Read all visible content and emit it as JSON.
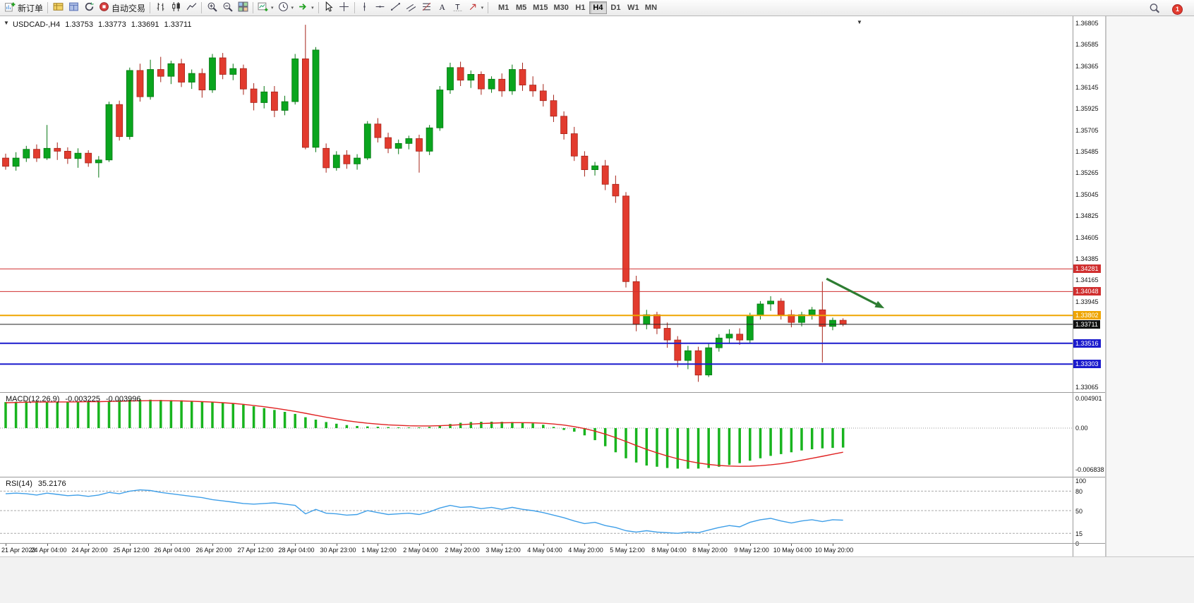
{
  "toolbar": {
    "new_order_label": "新订单",
    "autotrade_label": "自动交易",
    "timeframes": [
      "M1",
      "M5",
      "M15",
      "M30",
      "H1",
      "H4",
      "D1",
      "W1",
      "MN"
    ],
    "active_timeframe": "H4",
    "notification_count": "1"
  },
  "chart_header": {
    "symbol_period": "USDCAD-,H4",
    "open": "1.33753",
    "high": "1.33773",
    "low": "1.33691",
    "close": "1.33711"
  },
  "indicators": {
    "macd": {
      "label": "MACD(12,26,9)",
      "value_main": "-0.003225",
      "value_signal": "-0.003996"
    },
    "rsi": {
      "label": "RSI(14)",
      "value": "35.2176"
    }
  },
  "price_axis": {
    "labels": [
      "1.36805",
      "1.36585",
      "1.36365",
      "1.36145",
      "1.35925",
      "1.35705",
      "1.35485",
      "1.35265",
      "1.35045",
      "1.34825",
      "1.34605",
      "1.34385",
      "1.34165",
      "1.33945",
      "1.33065"
    ],
    "badges": [
      {
        "value": "1.34281",
        "color": "#d02f2f"
      },
      {
        "value": "1.34048",
        "color": "#d02f2f"
      },
      {
        "value": "1.33802",
        "color": "#efa500"
      },
      {
        "value": "1.33711",
        "color": "#111111"
      },
      {
        "value": "1.33516",
        "color": "#1b1bcd"
      },
      {
        "value": "1.33303",
        "color": "#1b1bcd"
      }
    ]
  },
  "chart_data": [
    {
      "type": "candlestick",
      "symbol": "USDCAD",
      "period": "H4",
      "ylim": [
        1.33065,
        1.36805
      ],
      "colors": {
        "up": "#0aa51e",
        "down": "#e23b2e",
        "up_stroke": "#067712",
        "down_stroke": "#a6241a"
      },
      "hlines": [
        {
          "price": 1.34281,
          "color": "#d02f2f",
          "width": 1
        },
        {
          "price": 1.34048,
          "color": "#d02f2f",
          "width": 1
        },
        {
          "price": 1.33802,
          "color": "#efa500",
          "width": 2
        },
        {
          "price": 1.33711,
          "color": "#222222",
          "width": 1
        },
        {
          "price": 1.33516,
          "color": "#1b1bcd",
          "width": 2
        },
        {
          "price": 1.33303,
          "color": "#1b1bcd",
          "width": 2
        }
      ],
      "annotation_arrow": {
        "from": {
          "bar": 79.4,
          "price": 1.3418
        },
        "to": {
          "bar": 85,
          "price": 1.33876
        },
        "color": "#2e7d32"
      },
      "x_tick_labels": [
        {
          "bar": 0,
          "label": "21 Apr 2023"
        },
        {
          "bar": 4,
          "label": "24 Apr 04:00"
        },
        {
          "bar": 8,
          "label": "24 Apr 20:00"
        },
        {
          "bar": 12,
          "label": "25 Apr 12:00"
        },
        {
          "bar": 16,
          "label": "26 Apr 04:00"
        },
        {
          "bar": 20,
          "label": "26 Apr 20:00"
        },
        {
          "bar": 24,
          "label": "27 Apr 12:00"
        },
        {
          "bar": 28,
          "label": "28 Apr 04:00"
        },
        {
          "bar": 32,
          "label": "30 Apr 23:00"
        },
        {
          "bar": 36,
          "label": "1 May 12:00"
        },
        {
          "bar": 40,
          "label": "2 May 04:00"
        },
        {
          "bar": 44,
          "label": "2 May 20:00"
        },
        {
          "bar": 48,
          "label": "3 May 12:00"
        },
        {
          "bar": 52,
          "label": "4 May 04:00"
        },
        {
          "bar": 56,
          "label": "4 May 20:00"
        },
        {
          "bar": 60,
          "label": "5 May 12:00"
        },
        {
          "bar": 64,
          "label": "8 May 04:00"
        },
        {
          "bar": 68,
          "label": "8 May 20:00"
        },
        {
          "bar": 72,
          "label": "9 May 12:00"
        },
        {
          "bar": 76,
          "label": "10 May 04:00"
        },
        {
          "bar": 80,
          "label": "10 May 20:00"
        }
      ],
      "ohlc": [
        [
          1.3542,
          1.35465,
          1.353,
          1.35335
        ],
        [
          1.35335,
          1.3548,
          1.3529,
          1.3542
        ],
        [
          1.3542,
          1.35545,
          1.3538,
          1.3551
        ],
        [
          1.3551,
          1.3556,
          1.3538,
          1.3542
        ],
        [
          1.3542,
          1.3576,
          1.354,
          1.3552
        ],
        [
          1.3552,
          1.3558,
          1.354,
          1.3549
        ],
        [
          1.3549,
          1.3553,
          1.3536,
          1.35415
        ],
        [
          1.35415,
          1.3552,
          1.3532,
          1.3547
        ],
        [
          1.3547,
          1.355,
          1.3533,
          1.3537
        ],
        [
          1.3537,
          1.3544,
          1.3522,
          1.354
        ],
        [
          1.354,
          1.36,
          1.3538,
          1.3597
        ],
        [
          1.3597,
          1.3601,
          1.356,
          1.3564
        ],
        [
          1.3564,
          1.3635,
          1.3561,
          1.3632
        ],
        [
          1.3632,
          1.3639,
          1.36,
          1.3605
        ],
        [
          1.3605,
          1.3643,
          1.3602,
          1.3633
        ],
        [
          1.3633,
          1.3646,
          1.362,
          1.3626
        ],
        [
          1.3626,
          1.3642,
          1.3618,
          1.3639
        ],
        [
          1.3639,
          1.3644,
          1.3615,
          1.362
        ],
        [
          1.362,
          1.3633,
          1.3613,
          1.3629
        ],
        [
          1.3629,
          1.3634,
          1.3604,
          1.3612
        ],
        [
          1.3612,
          1.3649,
          1.3609,
          1.3645
        ],
        [
          1.3645,
          1.365,
          1.3623,
          1.3628
        ],
        [
          1.3628,
          1.3639,
          1.3622,
          1.3634
        ],
        [
          1.3634,
          1.3638,
          1.3607,
          1.3613
        ],
        [
          1.3613,
          1.3619,
          1.3591,
          1.3599
        ],
        [
          1.3599,
          1.3616,
          1.3593,
          1.361
        ],
        [
          1.361,
          1.3616,
          1.3584,
          1.3591
        ],
        [
          1.3591,
          1.3606,
          1.3586,
          1.36
        ],
        [
          1.36,
          1.3649,
          1.3597,
          1.3644
        ],
        [
          1.3644,
          1.3679,
          1.3551,
          1.3553
        ],
        [
          1.3553,
          1.3656,
          1.3548,
          1.3653
        ],
        [
          1.3552,
          1.3557,
          1.3527,
          1.3532
        ],
        [
          1.3532,
          1.3549,
          1.3529,
          1.3545
        ],
        [
          1.3545,
          1.355,
          1.3531,
          1.3536
        ],
        [
          1.3536,
          1.3546,
          1.353,
          1.3542
        ],
        [
          1.3542,
          1.358,
          1.354,
          1.3577
        ],
        [
          1.3577,
          1.3583,
          1.3558,
          1.3563
        ],
        [
          1.3563,
          1.3568,
          1.3547,
          1.3552
        ],
        [
          1.3552,
          1.3561,
          1.3546,
          1.3557
        ],
        [
          1.3557,
          1.3565,
          1.3551,
          1.3562
        ],
        [
          1.3562,
          1.3566,
          1.3527,
          1.3549
        ],
        [
          1.3549,
          1.3576,
          1.3545,
          1.3573
        ],
        [
          1.3573,
          1.3616,
          1.357,
          1.3612
        ],
        [
          1.3612,
          1.364,
          1.3608,
          1.3635
        ],
        [
          1.3635,
          1.3641,
          1.3616,
          1.3622
        ],
        [
          1.3622,
          1.3632,
          1.3614,
          1.3628
        ],
        [
          1.3628,
          1.3631,
          1.3607,
          1.3613
        ],
        [
          1.3613,
          1.3626,
          1.3609,
          1.3623
        ],
        [
          1.3623,
          1.3629,
          1.3605,
          1.3611
        ],
        [
          1.3611,
          1.3638,
          1.3607,
          1.3633
        ],
        [
          1.3633,
          1.364,
          1.3611,
          1.3617
        ],
        [
          1.3617,
          1.3626,
          1.3605,
          1.3611
        ],
        [
          1.3611,
          1.3618,
          1.3595,
          1.3601
        ],
        [
          1.3601,
          1.3607,
          1.3579,
          1.3585
        ],
        [
          1.3585,
          1.359,
          1.3561,
          1.3567
        ],
        [
          1.3567,
          1.3574,
          1.3539,
          1.3544
        ],
        [
          1.3544,
          1.3549,
          1.3523,
          1.353
        ],
        [
          1.353,
          1.3538,
          1.3524,
          1.3534
        ],
        [
          1.3534,
          1.354,
          1.3509,
          1.3515
        ],
        [
          1.3515,
          1.3524,
          1.3496,
          1.3503
        ],
        [
          1.3503,
          1.3507,
          1.3409,
          1.3415
        ],
        [
          1.3415,
          1.3421,
          1.3364,
          1.3371
        ],
        [
          1.3371,
          1.3386,
          1.3366,
          1.3381
        ],
        [
          1.3381,
          1.3384,
          1.3361,
          1.3367
        ],
        [
          1.3367,
          1.3373,
          1.3347,
          1.3355
        ],
        [
          1.3355,
          1.3359,
          1.3327,
          1.3334
        ],
        [
          1.3334,
          1.3349,
          1.3325,
          1.3344
        ],
        [
          1.3344,
          1.3348,
          1.3312,
          1.3319
        ],
        [
          1.3319,
          1.3351,
          1.3317,
          1.3347
        ],
        [
          1.3347,
          1.3361,
          1.3343,
          1.3357
        ],
        [
          1.3357,
          1.3366,
          1.3351,
          1.3361
        ],
        [
          1.3361,
          1.3367,
          1.335,
          1.3355
        ],
        [
          1.3355,
          1.3383,
          1.3352,
          1.338
        ],
        [
          1.338,
          1.3395,
          1.3376,
          1.3392
        ],
        [
          1.3392,
          1.34,
          1.3385,
          1.3395
        ],
        [
          1.3395,
          1.3398,
          1.3376,
          1.3381
        ],
        [
          1.3381,
          1.3386,
          1.3368,
          1.3373
        ],
        [
          1.3373,
          1.3384,
          1.3369,
          1.3381
        ],
        [
          1.3381,
          1.3389,
          1.3376,
          1.3386
        ],
        [
          1.3386,
          1.3415,
          1.3332,
          1.3369
        ],
        [
          1.3369,
          1.3378,
          1.3365,
          1.33753
        ],
        [
          1.33753,
          1.33773,
          1.33691,
          1.33711
        ]
      ]
    },
    {
      "type": "bar",
      "name": "MACD(12,26,9)",
      "ylim": [
        -0.006838,
        0.004901
      ],
      "axis_labels": [
        "0.004901",
        "0.00",
        "-0.006838"
      ],
      "colors": {
        "histogram": "#18b41e",
        "signal": "#e02222"
      },
      "histogram": [
        0.0043,
        0.00435,
        0.0044,
        0.00442,
        0.00438,
        0.00432,
        0.00428,
        0.00435,
        0.0044,
        0.00445,
        0.00452,
        0.0046,
        0.00468,
        0.00472,
        0.0047,
        0.00465,
        0.00462,
        0.00458,
        0.0045,
        0.0044,
        0.00432,
        0.0042,
        0.00405,
        0.00385,
        0.0036,
        0.0033,
        0.003,
        0.00268,
        0.00235,
        0.0018,
        0.0014,
        0.001,
        0.00072,
        0.0005,
        0.00035,
        0.00028,
        0.00022,
        0.00016,
        0.00012,
        0.0001,
        0.00012,
        0.0002,
        0.0004,
        0.00068,
        0.00088,
        0.001,
        0.00105,
        0.00106,
        0.00104,
        0.001,
        0.00092,
        0.00078,
        0.00055,
        0.0002,
        -0.0003,
        -0.0006,
        -0.0012,
        -0.002,
        -0.003,
        -0.004,
        -0.005,
        -0.0057,
        -0.0062,
        -0.0064,
        -0.0066,
        -0.0067,
        -0.00672,
        -0.0067,
        -0.0066,
        -0.0064,
        -0.0061,
        -0.0058,
        -0.0054,
        -0.005,
        -0.0046,
        -0.0043,
        -0.004,
        -0.0037,
        -0.0035,
        -0.00335,
        -0.00328,
        -0.003225
      ],
      "signal": [
        0.0042,
        0.00424,
        0.00428,
        0.0043,
        0.00432,
        0.00433,
        0.00433,
        0.00434,
        0.00436,
        0.00438,
        0.00441,
        0.00445,
        0.00449,
        0.00452,
        0.00454,
        0.00454,
        0.00452,
        0.00449,
        0.00444,
        0.00438,
        0.0043,
        0.0042,
        0.00408,
        0.00393,
        0.00375,
        0.00354,
        0.0033,
        0.00304,
        0.00276,
        0.00245,
        0.00212,
        0.0018,
        0.0015,
        0.00123,
        0.001,
        0.00081,
        0.00066,
        0.00054,
        0.00045,
        0.00039,
        0.00036,
        0.00036,
        0.0004,
        0.00047,
        0.00056,
        0.00066,
        0.00075,
        0.00082,
        0.00087,
        0.0009,
        0.0009,
        0.00087,
        0.0008,
        0.00068,
        0.0005,
        0.00025,
        -8e-05,
        -0.0005,
        -0.001,
        -0.00158,
        -0.00222,
        -0.00288,
        -0.00352,
        -0.0041,
        -0.00462,
        -0.00508,
        -0.00546,
        -0.00577,
        -0.00601,
        -0.00618,
        -0.00628,
        -0.00632,
        -0.0063,
        -0.00622,
        -0.00608,
        -0.00588,
        -0.00562,
        -0.00532,
        -0.005,
        -0.00467,
        -0.00433,
        -0.003996
      ]
    },
    {
      "type": "line",
      "name": "RSI(14)",
      "ylim": [
        0,
        100
      ],
      "axis_labels": [
        "100",
        "80",
        "50",
        "15",
        "0"
      ],
      "levels": [
        80,
        50,
        15
      ],
      "colors": {
        "line": "#3f9fe8"
      },
      "values": [
        76,
        77,
        76,
        74,
        77,
        75,
        73,
        74,
        72,
        74,
        78,
        76,
        80,
        82,
        81,
        78,
        76,
        74,
        72,
        70,
        67,
        65,
        63,
        61,
        60,
        61,
        62,
        60,
        58,
        45,
        52,
        46,
        45,
        43,
        44,
        50,
        47,
        44,
        45,
        46,
        44,
        48,
        54,
        58,
        55,
        56,
        53,
        55,
        52,
        55,
        52,
        50,
        47,
        43,
        39,
        34,
        30,
        32,
        27,
        24,
        19,
        17,
        19,
        17,
        16,
        15,
        17,
        16,
        20,
        24,
        27,
        25,
        32,
        36,
        38,
        34,
        31,
        34,
        36,
        33,
        36,
        35.2176
      ]
    }
  ]
}
